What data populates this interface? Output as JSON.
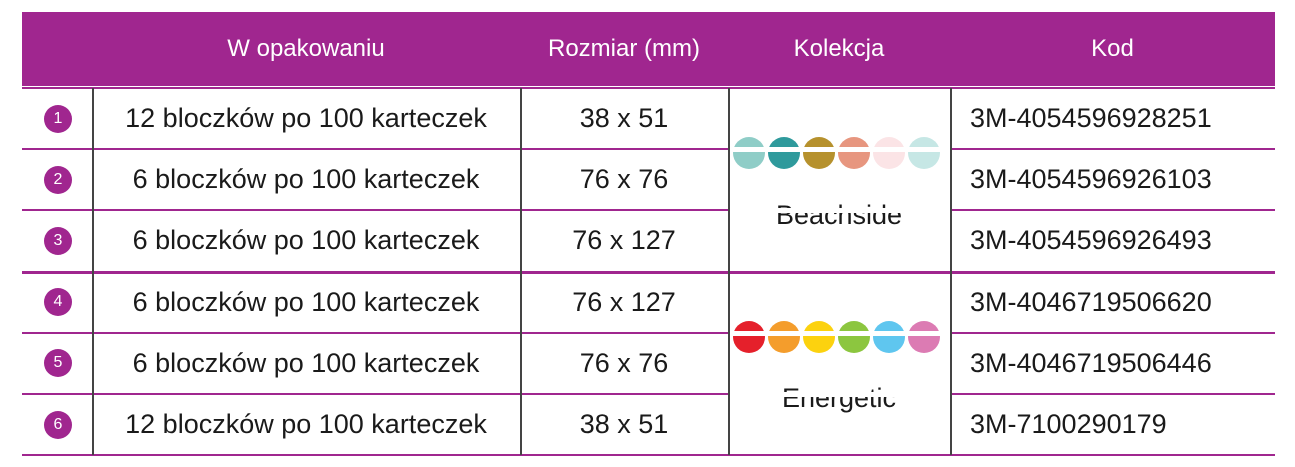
{
  "table": {
    "columns": [
      "W opakowaniu",
      "Rozmiar (mm)",
      "Kolekcja",
      "Kod"
    ],
    "rows": [
      {
        "number": "1",
        "packaging": "12 bloczków po 100 karteczek",
        "size": "38 x 51",
        "code": "3M-4054596928251"
      },
      {
        "number": "2",
        "packaging": "6 bloczków po 100 karteczek",
        "size": "76 x 76",
        "code": "3M-4054596926103"
      },
      {
        "number": "3",
        "packaging": "6 bloczków po 100 karteczek",
        "size": "76 x 127",
        "code": "3M-4054596926493"
      },
      {
        "number": "4",
        "packaging": "6 bloczków po 100 karteczek",
        "size": "76 x 127",
        "code": "3M-4046719506620"
      },
      {
        "number": "5",
        "packaging": "6 bloczków po 100 karteczek",
        "size": "76 x 76",
        "code": "3M-4046719506446"
      },
      {
        "number": "6",
        "packaging": "12 bloczków po 100 karteczek",
        "size": "38 x 51",
        "code": "3M-7100290179"
      }
    ],
    "collections": [
      "Beachside",
      "Energetic"
    ]
  }
}
